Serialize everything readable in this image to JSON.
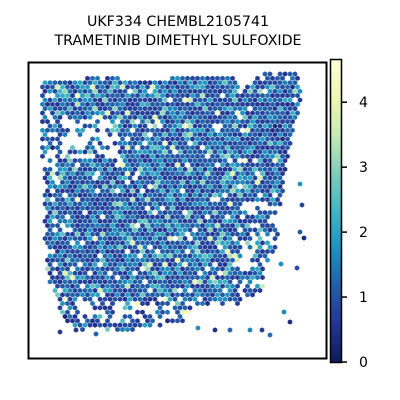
{
  "chart_data": {
    "type": "scatter",
    "title_lines": [
      "UKF334 CHEMBL2105741",
      "TRAMETINIB DIMETHYL SULFOXIDE"
    ],
    "marker": "hexagon",
    "colormap": "YlGnBu_r",
    "colormap_stops": [
      "#081d58",
      "#253494",
      "#225ea8",
      "#1d91c0",
      "#41b6c4",
      "#7fcdbb",
      "#c7e9b4",
      "#edf8b1",
      "#ffffd9"
    ],
    "colorbar": {
      "range": [
        0,
        4.65
      ],
      "ticks": [
        0,
        1,
        2,
        3,
        4
      ],
      "tick_labels": [
        "0",
        "1",
        "2",
        "3",
        "4"
      ]
    },
    "axes": {
      "x_ticks_visible": false,
      "y_ticks_visible": false,
      "grid": false
    },
    "value_distribution": {
      "typical": 1.0,
      "min": 0,
      "max": 4.65
    }
  }
}
